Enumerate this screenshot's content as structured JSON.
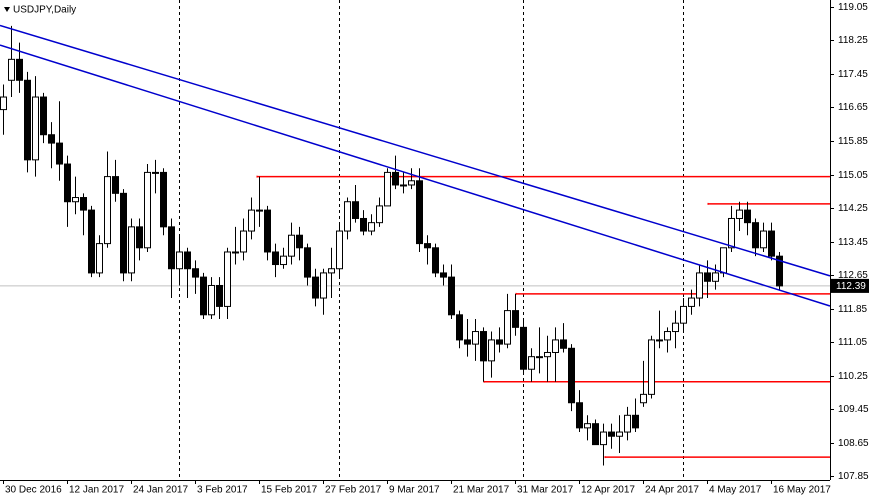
{
  "chart_data": {
    "type": "candlestick",
    "title": "USDJPY,Daily",
    "categories": [
      "30 Dec 2016",
      null,
      null,
      null,
      null,
      null,
      null,
      null,
      "12 Jan 2017",
      null,
      null,
      null,
      null,
      null,
      null,
      null,
      "24 Jan 2017",
      null,
      null,
      null,
      null,
      null,
      null,
      null,
      "3 Feb 2017",
      null,
      null,
      null,
      null,
      null,
      null,
      null,
      "15 Feb 2017",
      null,
      null,
      null,
      null,
      null,
      null,
      null,
      "27 Feb 2017",
      null,
      null,
      null,
      null,
      null,
      null,
      null,
      "9 Mar 2017",
      null,
      null,
      null,
      null,
      null,
      null,
      null,
      "21 Mar 2017",
      null,
      null,
      null,
      null,
      null,
      null,
      null,
      "31 Mar 2017",
      null,
      null,
      null,
      null,
      null,
      null,
      null,
      "12 Apr 2017",
      null,
      null,
      null,
      null,
      null,
      null,
      null,
      "24 Apr 2017",
      null,
      null,
      null,
      null,
      null,
      null,
      null,
      "4 May 2017",
      null,
      null,
      null,
      null,
      null,
      null,
      null,
      "16 May 2017",
      null
    ],
    "open": [
      116.6,
      117.3,
      117.8,
      117.3,
      115.4,
      116.9,
      116.0,
      115.8,
      115.3,
      114.4,
      114.5,
      114.2,
      112.7,
      113.4,
      115.0,
      114.6,
      112.7,
      113.8,
      113.3,
      115.1,
      115.1,
      113.8,
      112.8,
      113.2,
      112.8,
      112.6,
      111.7,
      112.4,
      111.9,
      113.2,
      113.2,
      113.7,
      114.2,
      114.2,
      113.2,
      112.9,
      113.1,
      113.6,
      113.3,
      112.6,
      112.1,
      112.7,
      112.8,
      113.7,
      114.4,
      114.0,
      113.7,
      113.9,
      114.3,
      115.1,
      114.8,
      114.8,
      114.9,
      113.4,
      113.3,
      112.7,
      112.6,
      111.7,
      111.1,
      111.0,
      111.3,
      110.6,
      111.1,
      111.0,
      111.8,
      111.4,
      110.4,
      110.7,
      110.7,
      110.8,
      111.1,
      110.9,
      109.6,
      109.0,
      109.1,
      108.6,
      108.9,
      108.8,
      108.9,
      109.3,
      109.6,
      109.8,
      111.1,
      111.1,
      111.3,
      111.5,
      111.9,
      112.1,
      112.7,
      112.5,
      112.7,
      113.3,
      114.0,
      114.2,
      113.9,
      113.3,
      113.7,
      113.1
    ],
    "high": [
      117.2,
      118.6,
      118.2,
      117.5,
      117.4,
      117.0,
      116.3,
      116.8,
      115.5,
      115.0,
      114.6,
      114.3,
      113.6,
      115.6,
      115.4,
      114.7,
      114.0,
      114.0,
      115.3,
      115.4,
      115.2,
      114.0,
      113.6,
      113.3,
      113.0,
      112.7,
      112.6,
      112.6,
      113.3,
      113.8,
      114.0,
      114.5,
      115.0,
      114.3,
      113.4,
      113.3,
      113.9,
      113.8,
      113.4,
      112.8,
      112.8,
      113.3,
      113.9,
      114.5,
      114.8,
      114.2,
      114.1,
      114.5,
      115.2,
      115.5,
      115.1,
      115.2,
      115.2,
      113.6,
      113.4,
      112.9,
      112.9,
      111.8,
      111.6,
      111.6,
      111.4,
      111.3,
      111.4,
      112.2,
      112.2,
      111.6,
      110.9,
      111.4,
      111.2,
      111.4,
      111.5,
      111.0,
      109.9,
      109.3,
      109.2,
      109.1,
      109.1,
      109.3,
      109.5,
      109.7,
      110.6,
      111.2,
      111.8,
      111.4,
      111.8,
      112.1,
      112.3,
      112.9,
      113.0,
      112.9,
      113.3,
      114.3,
      114.4,
      114.4,
      114.0,
      113.9,
      113.9,
      113.2
    ],
    "low": [
      116.0,
      116.9,
      117.0,
      115.1,
      115.0,
      115.8,
      115.2,
      114.9,
      113.8,
      114.1,
      113.6,
      112.6,
      112.6,
      113.3,
      114.4,
      112.5,
      112.5,
      113.0,
      113.2,
      114.6,
      113.6,
      112.1,
      112.4,
      112.1,
      112.2,
      111.6,
      111.6,
      111.6,
      111.6,
      112.9,
      113.0,
      113.5,
      113.8,
      113.0,
      112.6,
      112.8,
      112.9,
      113.0,
      112.4,
      111.9,
      111.7,
      112.1,
      112.6,
      113.5,
      113.9,
      113.6,
      113.6,
      113.8,
      114.3,
      114.7,
      114.6,
      114.7,
      113.2,
      112.9,
      112.6,
      112.4,
      111.6,
      110.9,
      110.7,
      110.6,
      110.1,
      110.2,
      110.8,
      110.9,
      111.2,
      110.3,
      110.1,
      110.3,
      110.1,
      110.1,
      110.8,
      109.4,
      108.9,
      108.7,
      108.6,
      108.1,
      108.5,
      108.4,
      108.7,
      108.9,
      109.5,
      109.7,
      110.9,
      110.8,
      110.9,
      111.3,
      111.7,
      111.9,
      112.1,
      112.3,
      112.6,
      113.2,
      113.7,
      113.6,
      113.1,
      113.2,
      113.0,
      112.3
    ],
    "close": [
      116.9,
      117.8,
      117.3,
      115.4,
      116.9,
      116.0,
      115.8,
      115.3,
      114.4,
      114.5,
      114.2,
      112.7,
      113.4,
      115.0,
      114.6,
      112.7,
      113.8,
      113.3,
      115.1,
      115.1,
      113.8,
      112.8,
      113.2,
      112.8,
      112.6,
      111.7,
      112.4,
      111.9,
      113.2,
      113.2,
      113.7,
      114.2,
      114.2,
      113.2,
      112.9,
      113.1,
      113.6,
      113.3,
      112.6,
      112.1,
      112.7,
      112.8,
      113.7,
      114.4,
      114.0,
      113.7,
      113.9,
      114.3,
      115.1,
      114.8,
      114.8,
      114.9,
      113.4,
      113.3,
      112.7,
      112.6,
      111.7,
      111.1,
      111.0,
      111.3,
      110.6,
      111.1,
      111.0,
      111.8,
      111.4,
      110.4,
      110.7,
      110.7,
      110.8,
      111.1,
      110.9,
      109.6,
      109.0,
      109.1,
      108.6,
      108.9,
      108.8,
      108.9,
      109.3,
      109.0,
      109.8,
      111.1,
      111.1,
      111.3,
      111.5,
      111.9,
      112.1,
      112.7,
      112.5,
      112.7,
      113.3,
      114.0,
      114.2,
      113.9,
      113.3,
      113.7,
      113.1,
      112.39
    ],
    "up_color": "#ffffff",
    "down_color": "#000000",
    "ylim": [
      107.755,
      119.217
    ],
    "yticks": [
      119.05,
      118.25,
      117.45,
      116.65,
      115.85,
      115.05,
      114.25,
      113.45,
      112.65,
      111.85,
      111.05,
      110.25,
      109.45,
      108.65,
      107.85
    ],
    "last_price": 112.39,
    "levels": [
      115.0,
      114.35,
      112.2,
      110.1,
      108.3
    ],
    "level_color": "#ff0000",
    "trendlines": [
      {
        "start": 118.61,
        "end": 112.63
      },
      {
        "start": 118.14,
        "end": 111.91
      }
    ],
    "trendline_color": "#0000cd"
  }
}
